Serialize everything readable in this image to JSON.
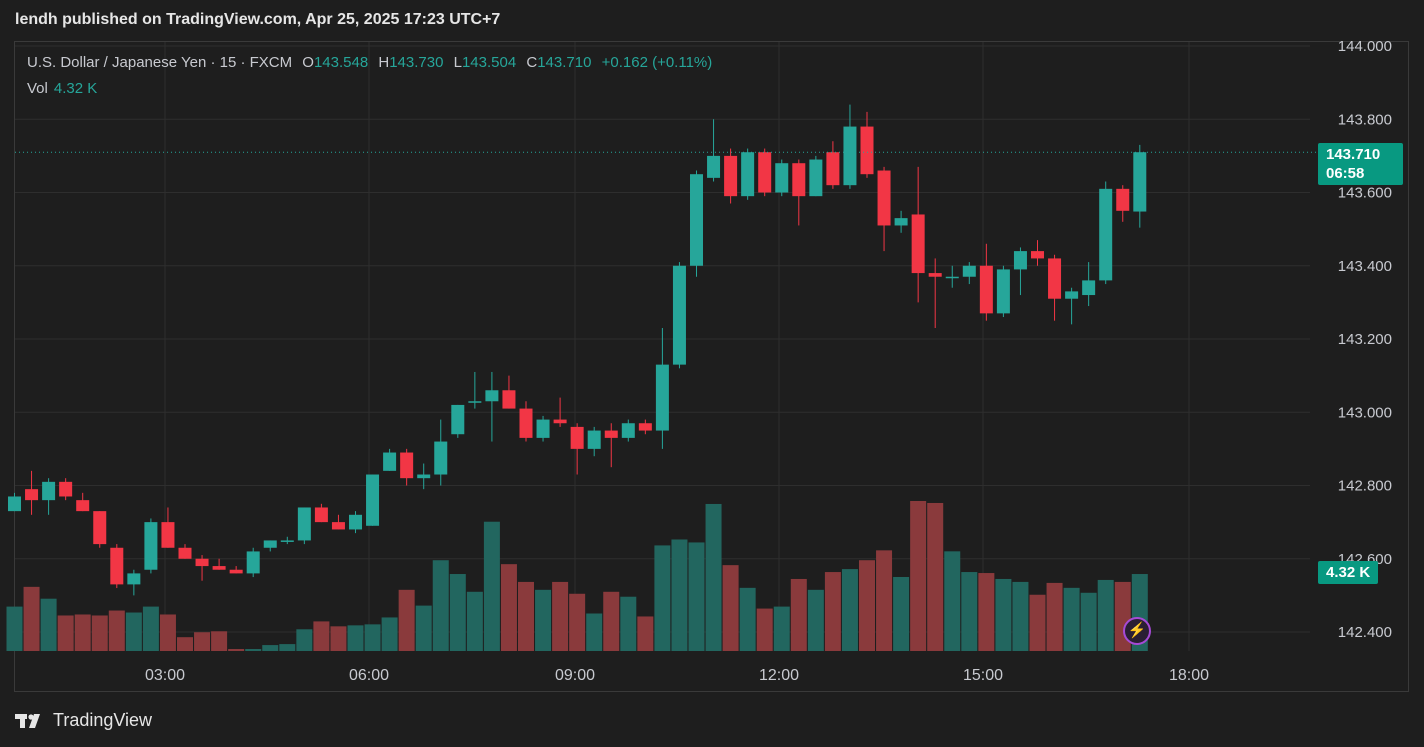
{
  "publish_line": "lendh published on TradingView.com, Apr 25, 2025 17:23 UTC+7",
  "legend": {
    "symbol": "U.S. Dollar / Japanese Yen · 15 · FXCM",
    "open_label": "O",
    "open": "143.548",
    "high_label": "H",
    "high": "143.730",
    "low_label": "L",
    "low": "143.504",
    "close_label": "C",
    "close": "143.710",
    "change": "+0.162 (+0.11%)",
    "vol_label": "Vol",
    "vol": "4.32 K"
  },
  "price_badge": {
    "price": "143.710",
    "countdown": "06:58"
  },
  "vol_badge": "4.32 K",
  "footer_brand": "TradingView",
  "colors": {
    "up": "#26a69a",
    "down": "#f23645",
    "up_vol": "#22665f",
    "down_vol": "#8a3a3c",
    "background": "#1e1e1e",
    "grid": "#2e2e2e",
    "badge": "#089981"
  },
  "icons": {
    "brand": "tradingview-logo-icon",
    "alert": "lightning-bolt-icon"
  },
  "chart_data": {
    "type": "candlestick",
    "symbol": "USDJPY",
    "interval": "15",
    "y_ticks": [
      "142.400",
      "142.600",
      "142.800",
      "143.000",
      "143.200",
      "143.400",
      "143.600",
      "143.800",
      "144.000"
    ],
    "x_ticks": [
      "03:00",
      "06:00",
      "09:00",
      "12:00",
      "15:00",
      "18:00"
    ],
    "ylim": [
      142.37,
      144.02
    ],
    "grid": true,
    "last_price": 143.71,
    "candles": [
      {
        "o": 142.73,
        "h": 142.78,
        "l": 142.73,
        "c": 142.77,
        "v": 45
      },
      {
        "o": 142.79,
        "h": 142.84,
        "l": 142.72,
        "c": 142.76,
        "v": 65
      },
      {
        "o": 142.76,
        "h": 142.82,
        "l": 142.72,
        "c": 142.81,
        "v": 53
      },
      {
        "o": 142.81,
        "h": 142.82,
        "l": 142.76,
        "c": 142.77,
        "v": 36
      },
      {
        "o": 142.76,
        "h": 142.78,
        "l": 142.73,
        "c": 142.73,
        "v": 37
      },
      {
        "o": 142.73,
        "h": 142.73,
        "l": 142.63,
        "c": 142.64,
        "v": 36
      },
      {
        "o": 142.63,
        "h": 142.64,
        "l": 142.52,
        "c": 142.53,
        "v": 41
      },
      {
        "o": 142.53,
        "h": 142.57,
        "l": 142.5,
        "c": 142.56,
        "v": 39
      },
      {
        "o": 142.57,
        "h": 142.71,
        "l": 142.56,
        "c": 142.7,
        "v": 45
      },
      {
        "o": 142.7,
        "h": 142.74,
        "l": 142.63,
        "c": 142.63,
        "v": 37
      },
      {
        "o": 142.63,
        "h": 142.64,
        "l": 142.6,
        "c": 142.6,
        "v": 14
      },
      {
        "o": 142.6,
        "h": 142.61,
        "l": 142.54,
        "c": 142.58,
        "v": 19
      },
      {
        "o": 142.58,
        "h": 142.6,
        "l": 142.57,
        "c": 142.57,
        "v": 20
      },
      {
        "o": 142.57,
        "h": 142.58,
        "l": 142.56,
        "c": 142.56,
        "v": 2
      },
      {
        "o": 142.56,
        "h": 142.63,
        "l": 142.55,
        "c": 142.62,
        "v": 2
      },
      {
        "o": 142.63,
        "h": 142.65,
        "l": 142.62,
        "c": 142.65,
        "v": 6
      },
      {
        "o": 142.65,
        "h": 142.66,
        "l": 142.64,
        "c": 142.65,
        "v": 7
      },
      {
        "o": 142.65,
        "h": 142.74,
        "l": 142.64,
        "c": 142.74,
        "v": 22
      },
      {
        "o": 142.74,
        "h": 142.75,
        "l": 142.7,
        "c": 142.7,
        "v": 30
      },
      {
        "o": 142.7,
        "h": 142.72,
        "l": 142.68,
        "c": 142.68,
        "v": 25
      },
      {
        "o": 142.68,
        "h": 142.73,
        "l": 142.67,
        "c": 142.72,
        "v": 26
      },
      {
        "o": 142.69,
        "h": 142.83,
        "l": 142.69,
        "c": 142.83,
        "v": 27
      },
      {
        "o": 142.84,
        "h": 142.9,
        "l": 142.84,
        "c": 142.89,
        "v": 34
      },
      {
        "o": 142.89,
        "h": 142.9,
        "l": 142.8,
        "c": 142.82,
        "v": 62
      },
      {
        "o": 142.82,
        "h": 142.86,
        "l": 142.79,
        "c": 142.83,
        "v": 46
      },
      {
        "o": 142.83,
        "h": 142.98,
        "l": 142.8,
        "c": 142.92,
        "v": 92
      },
      {
        "o": 142.94,
        "h": 143.02,
        "l": 142.93,
        "c": 143.02,
        "v": 78
      },
      {
        "o": 143.03,
        "h": 143.11,
        "l": 143.01,
        "c": 143.03,
        "v": 60
      },
      {
        "o": 143.03,
        "h": 143.11,
        "l": 142.92,
        "c": 143.06,
        "v": 131
      },
      {
        "o": 143.06,
        "h": 143.1,
        "l": 143.01,
        "c": 143.01,
        "v": 88
      },
      {
        "o": 143.01,
        "h": 143.03,
        "l": 142.92,
        "c": 142.93,
        "v": 70
      },
      {
        "o": 142.93,
        "h": 142.99,
        "l": 142.92,
        "c": 142.98,
        "v": 62
      },
      {
        "o": 142.98,
        "h": 143.04,
        "l": 142.96,
        "c": 142.97,
        "v": 70
      },
      {
        "o": 142.96,
        "h": 142.97,
        "l": 142.83,
        "c": 142.9,
        "v": 58
      },
      {
        "o": 142.9,
        "h": 142.96,
        "l": 142.88,
        "c": 142.95,
        "v": 38
      },
      {
        "o": 142.95,
        "h": 142.97,
        "l": 142.85,
        "c": 142.93,
        "v": 60
      },
      {
        "o": 142.93,
        "h": 142.98,
        "l": 142.92,
        "c": 142.97,
        "v": 55
      },
      {
        "o": 142.97,
        "h": 142.98,
        "l": 142.94,
        "c": 142.95,
        "v": 35
      },
      {
        "o": 142.95,
        "h": 143.23,
        "l": 142.9,
        "c": 143.13,
        "v": 107
      },
      {
        "o": 143.13,
        "h": 143.41,
        "l": 143.12,
        "c": 143.4,
        "v": 113
      },
      {
        "o": 143.4,
        "h": 143.66,
        "l": 143.37,
        "c": 143.65,
        "v": 110
      },
      {
        "o": 143.64,
        "h": 143.8,
        "l": 143.63,
        "c": 143.7,
        "v": 149
      },
      {
        "o": 143.7,
        "h": 143.72,
        "l": 143.57,
        "c": 143.59,
        "v": 87
      },
      {
        "o": 143.59,
        "h": 143.72,
        "l": 143.58,
        "c": 143.71,
        "v": 64
      },
      {
        "o": 143.71,
        "h": 143.72,
        "l": 143.59,
        "c": 143.6,
        "v": 43
      },
      {
        "o": 143.6,
        "h": 143.69,
        "l": 143.59,
        "c": 143.68,
        "v": 45
      },
      {
        "o": 143.68,
        "h": 143.69,
        "l": 143.51,
        "c": 143.59,
        "v": 73
      },
      {
        "o": 143.59,
        "h": 143.7,
        "l": 143.59,
        "c": 143.69,
        "v": 62
      },
      {
        "o": 143.71,
        "h": 143.74,
        "l": 143.61,
        "c": 143.62,
        "v": 80
      },
      {
        "o": 143.62,
        "h": 143.84,
        "l": 143.61,
        "c": 143.78,
        "v": 83
      },
      {
        "o": 143.78,
        "h": 143.82,
        "l": 143.64,
        "c": 143.65,
        "v": 92
      },
      {
        "o": 143.66,
        "h": 143.67,
        "l": 143.44,
        "c": 143.51,
        "v": 102
      },
      {
        "o": 143.51,
        "h": 143.55,
        "l": 143.49,
        "c": 143.53,
        "v": 75
      },
      {
        "o": 143.54,
        "h": 143.67,
        "l": 143.3,
        "c": 143.38,
        "v": 152
      },
      {
        "o": 143.38,
        "h": 143.42,
        "l": 143.23,
        "c": 143.37,
        "v": 150
      },
      {
        "o": 143.37,
        "h": 143.4,
        "l": 143.34,
        "c": 143.37,
        "v": 101
      },
      {
        "o": 143.37,
        "h": 143.41,
        "l": 143.35,
        "c": 143.4,
        "v": 80
      },
      {
        "o": 143.4,
        "h": 143.46,
        "l": 143.25,
        "c": 143.27,
        "v": 79
      },
      {
        "o": 143.27,
        "h": 143.4,
        "l": 143.26,
        "c": 143.39,
        "v": 73
      },
      {
        "o": 143.39,
        "h": 143.45,
        "l": 143.32,
        "c": 143.44,
        "v": 70
      },
      {
        "o": 143.44,
        "h": 143.47,
        "l": 143.4,
        "c": 143.42,
        "v": 57
      },
      {
        "o": 143.42,
        "h": 143.43,
        "l": 143.25,
        "c": 143.31,
        "v": 69
      },
      {
        "o": 143.31,
        "h": 143.34,
        "l": 143.24,
        "c": 143.33,
        "v": 64
      },
      {
        "o": 143.32,
        "h": 143.41,
        "l": 143.29,
        "c": 143.36,
        "v": 59
      },
      {
        "o": 143.36,
        "h": 143.63,
        "l": 143.35,
        "c": 143.61,
        "v": 72
      },
      {
        "o": 143.61,
        "h": 143.62,
        "l": 143.52,
        "c": 143.55,
        "v": 70
      },
      {
        "o": 143.548,
        "h": 143.73,
        "l": 143.504,
        "c": 143.71,
        "v": 78
      }
    ]
  }
}
